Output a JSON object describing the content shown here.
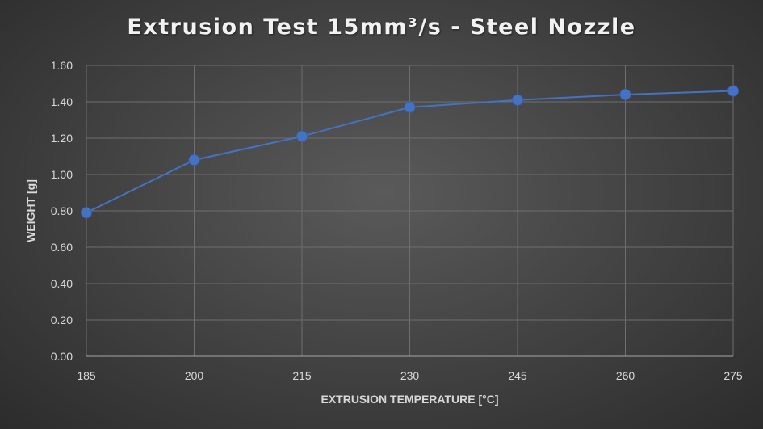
{
  "chart_data": {
    "type": "line",
    "title": "Extrusion Test 15mm³/s - Steel Nozzle",
    "xlabel": "EXTRUSION TEMPERATURE [°C]",
    "ylabel": "WEIGHT [g]",
    "x": [
      185,
      200,
      215,
      230,
      245,
      260,
      275
    ],
    "x_tick_labels": [
      "185",
      "200",
      "215",
      "230",
      "245",
      "260",
      "275"
    ],
    "y_tick_labels": [
      "0.00",
      "0.20",
      "0.40",
      "0.60",
      "0.80",
      "1.00",
      "1.20",
      "1.40",
      "1.60"
    ],
    "xlim": [
      185,
      275
    ],
    "ylim": [
      0,
      1.6
    ],
    "series": [
      {
        "values": [
          0.79,
          1.08,
          1.21,
          1.37,
          1.41,
          1.44,
          1.46
        ],
        "color": "#4472c4"
      }
    ],
    "grid": true,
    "legend": "none",
    "colors": {
      "grid": "#6e6e6e",
      "axis": "#a6a6a6",
      "line": "#4472c4",
      "marker": "#4472c4"
    }
  }
}
